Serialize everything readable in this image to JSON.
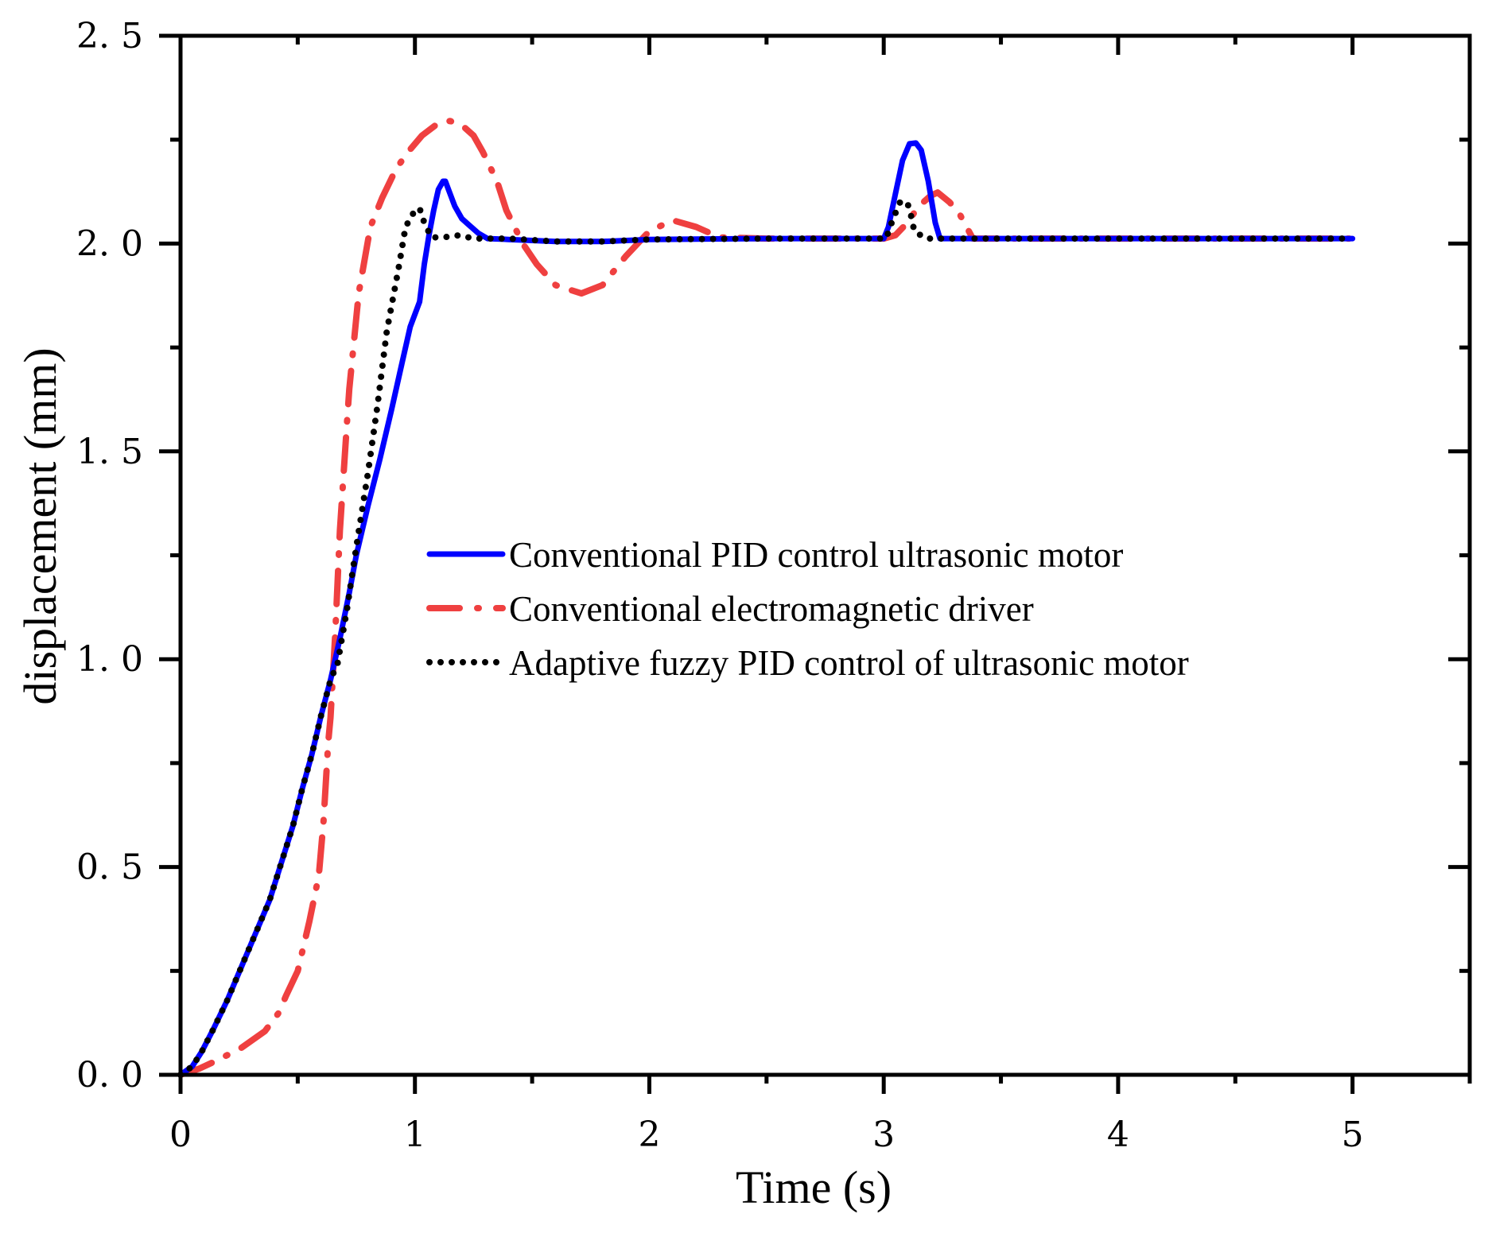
{
  "chart_data": {
    "type": "line",
    "title": "",
    "xlabel": "Time (s)",
    "ylabel": "displacement (mm)",
    "xlim": [
      0,
      5.5
    ],
    "ylim": [
      0,
      2.5
    ],
    "x_ticks": [
      0,
      1,
      2,
      3,
      4,
      5
    ],
    "x_tick_labels": [
      "0",
      "1",
      "2",
      "3",
      "4",
      "5"
    ],
    "x_minor_step": 0.5,
    "y_ticks": [
      0,
      0.5,
      1.0,
      1.5,
      2.0,
      2.5
    ],
    "y_tick_labels": [
      "0. 0",
      "0. 5",
      "1. 0",
      "1. 5",
      "2. 0",
      "2. 5"
    ],
    "y_minor_step": 0.25,
    "grid": false,
    "legend_position": "center-right",
    "series": [
      {
        "name": "Conventional PID control ultrasonic motor",
        "color": "#0000ff",
        "style": "solid",
        "x": [
          0,
          0.05,
          0.09,
          0.14,
          0.2,
          0.26,
          0.32,
          0.38,
          0.43,
          0.48,
          0.52,
          0.56,
          0.6,
          0.64,
          0.68,
          0.72,
          0.75,
          0.8,
          0.85,
          0.9,
          0.94,
          0.98,
          1.02,
          1.04,
          1.06,
          1.08,
          1.1,
          1.12,
          1.13,
          1.15,
          1.17,
          1.2,
          1.23,
          1.27,
          1.31,
          1.4,
          1.6,
          1.8,
          2.0,
          2.5,
          3.0,
          3.02,
          3.05,
          3.08,
          3.11,
          3.137,
          3.16,
          3.19,
          3.22,
          3.24,
          3.3,
          3.5,
          4.0,
          4.5,
          5.0
        ],
        "y": [
          0,
          0.02,
          0.055,
          0.11,
          0.18,
          0.26,
          0.34,
          0.42,
          0.51,
          0.6,
          0.69,
          0.77,
          0.865,
          0.95,
          1.05,
          1.16,
          1.25,
          1.37,
          1.48,
          1.6,
          1.7,
          1.8,
          1.86,
          1.95,
          2.02,
          2.08,
          2.13,
          2.15,
          2.15,
          2.12,
          2.09,
          2.06,
          2.045,
          2.025,
          2.012,
          2.01,
          2.005,
          2.005,
          2.01,
          2.012,
          2.012,
          2.04,
          2.12,
          2.2,
          2.24,
          2.242,
          2.225,
          2.15,
          2.05,
          2.012,
          2.012,
          2.012,
          2.012,
          2.012,
          2.012
        ]
      },
      {
        "name": "Conventional electromagnetic driver",
        "color": "#ef4040",
        "style": "dash-dot",
        "x": [
          0,
          0.08,
          0.16,
          0.26,
          0.36,
          0.42,
          0.45,
          0.5,
          0.55,
          0.59,
          0.61,
          0.63,
          0.64,
          0.66,
          0.68,
          0.71,
          0.72,
          0.76,
          0.81,
          0.86,
          0.92,
          0.97,
          1.03,
          1.1,
          1.15,
          1.2,
          1.25,
          1.29,
          1.35,
          1.39,
          1.46,
          1.52,
          1.6,
          1.71,
          1.8,
          1.9,
          2.0,
          2.1,
          2.2,
          2.3,
          2.5,
          3.0,
          3.05,
          3.1,
          3.15,
          3.2,
          3.23,
          3.28,
          3.32,
          3.38,
          3.5,
          4.0,
          4.5,
          5.0
        ],
        "y": [
          0,
          0.015,
          0.036,
          0.065,
          0.105,
          0.15,
          0.19,
          0.25,
          0.37,
          0.48,
          0.61,
          0.8,
          0.86,
          1.06,
          1.31,
          1.57,
          1.65,
          1.88,
          2.04,
          2.11,
          2.18,
          2.22,
          2.26,
          2.29,
          2.295,
          2.285,
          2.26,
          2.22,
          2.15,
          2.08,
          2.0,
          1.95,
          1.9,
          1.88,
          1.9,
          1.97,
          2.03,
          2.056,
          2.04,
          2.015,
          2.012,
          2.012,
          2.02,
          2.05,
          2.09,
          2.115,
          2.123,
          2.1,
          2.075,
          2.012,
          2.012,
          2.012,
          2.012,
          2.012
        ]
      },
      {
        "name": "Adaptive fuzzy PID control of ultrasonic motor",
        "color": "#000000",
        "style": "dotted",
        "x": [
          0,
          0.05,
          0.09,
          0.14,
          0.2,
          0.26,
          0.32,
          0.38,
          0.43,
          0.48,
          0.52,
          0.56,
          0.6,
          0.64,
          0.67,
          0.71,
          0.75,
          0.8,
          0.84,
          0.88,
          0.93,
          0.96,
          1.0,
          1.02,
          1.04,
          1.07,
          1.12,
          1.19,
          1.25,
          1.4,
          1.6,
          1.8,
          2.0,
          2.5,
          3.0,
          3.01,
          3.04,
          3.07,
          3.1,
          3.12,
          3.13,
          3.18,
          3.3,
          3.5,
          4.0,
          4.5,
          5.0
        ],
        "y": [
          0,
          0.02,
          0.055,
          0.11,
          0.18,
          0.26,
          0.34,
          0.42,
          0.51,
          0.6,
          0.69,
          0.77,
          0.865,
          0.95,
          0.99,
          1.12,
          1.27,
          1.45,
          1.61,
          1.79,
          1.94,
          2.04,
          2.08,
          2.085,
          2.05,
          2.015,
          2.015,
          2.02,
          2.012,
          2.012,
          2.005,
          2.005,
          2.01,
          2.012,
          2.012,
          2.012,
          2.06,
          2.1,
          2.1,
          2.06,
          2.03,
          2.012,
          2.012,
          2.012,
          2.012,
          2.012,
          2.012
        ]
      }
    ]
  }
}
